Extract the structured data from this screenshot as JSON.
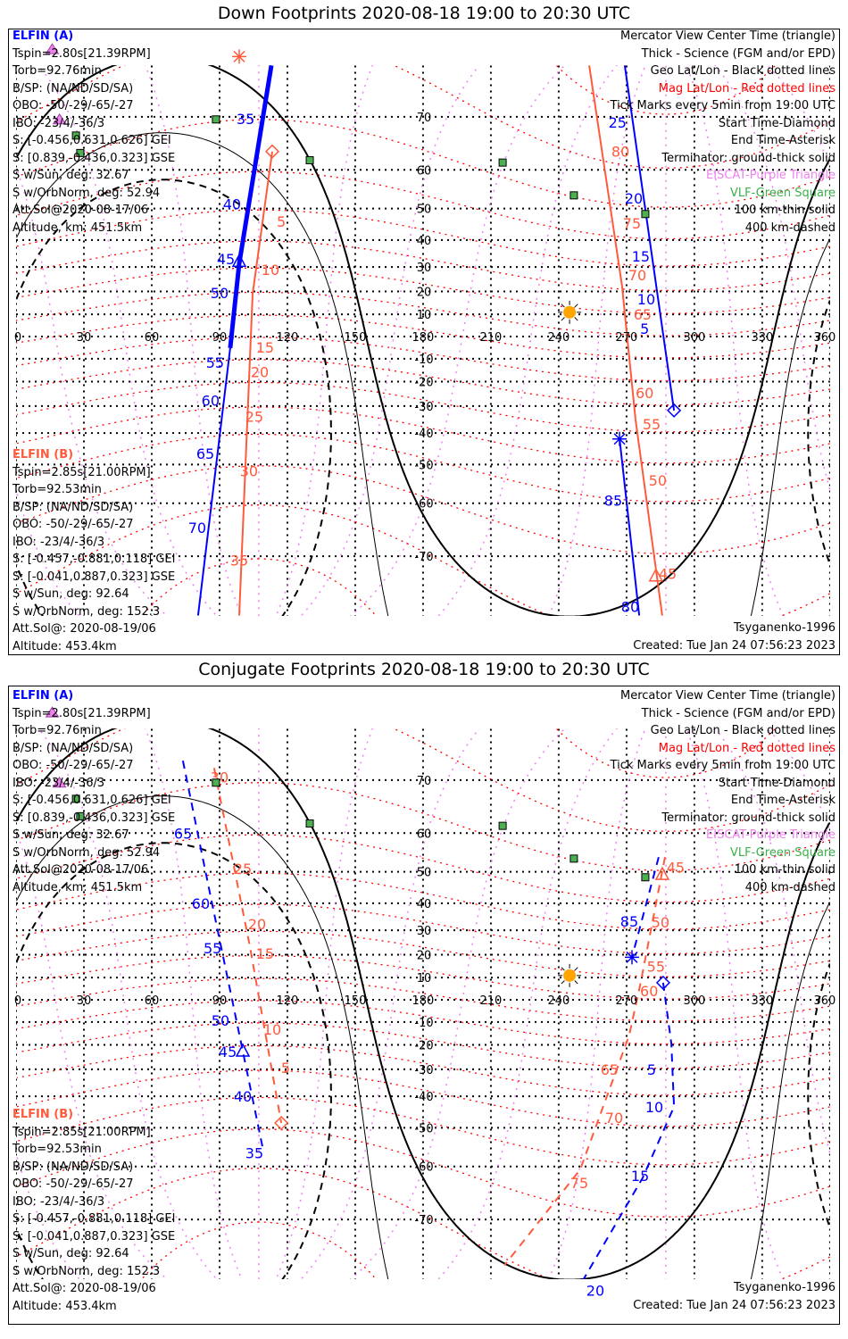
{
  "panels": [
    {
      "title": "Down Footprints 2020-08-18 19:00 to 20:30 UTC",
      "line_style": "solid",
      "tracks": [
        {
          "sat": "A",
          "color": "#0000ff",
          "segments": [
            {
              "science": true,
              "points": [
                [
                  112.9,
                  76.6
                ],
                [
                  98.7,
                  31.4
                ],
                [
                  94.7,
                  -5.2
                ]
              ]
            },
            {
              "science": false,
              "points": [
                [
                  94.7,
                  -5.2
                ],
                [
                  80.5,
                  -77.4
                ]
              ]
            }
          ],
          "labels": [
            {
              "t": "35",
              "lon": 101.5,
              "lat": 69.7
            },
            {
              "t": "40",
              "lon": 95.5,
              "lat": 51.3
            },
            {
              "t": "45",
              "lon": 92.8,
              "lat": 33.2
            },
            {
              "t": "50",
              "lon": 90,
              "lat": 19.4
            },
            {
              "t": "55",
              "lon": 88,
              "lat": -11.6
            },
            {
              "t": "60",
              "lon": 86,
              "lat": -27.8
            },
            {
              "t": "65",
              "lon": 83.7,
              "lat": -46.7
            },
            {
              "t": "70",
              "lon": 80.1,
              "lat": -65.1
            }
          ]
        },
        {
          "sat": "B",
          "color": "#ff5a3c",
          "segments": [
            {
              "science": false,
              "points": [
                [
                  113.3,
                  63.9
                ],
                [
                  104.6,
                  18.9
                ],
                [
                  98.7,
                  -77.4
                ]
              ]
            }
          ],
          "labels": [
            {
              "t": "5",
              "lon": 117.3,
              "lat": 46.2
            },
            {
              "t": "10",
              "lon": 112.5,
              "lat": 29
            },
            {
              "t": "15",
              "lon": 110.1,
              "lat": -4.8
            },
            {
              "t": "20",
              "lon": 107.8,
              "lat": -15.8
            },
            {
              "t": "25",
              "lon": 105.4,
              "lat": -34
            },
            {
              "t": "30",
              "lon": 103,
              "lat": -51.8
            },
            {
              "t": "35",
              "lon": 98.7,
              "lat": -70.6
            }
          ]
        },
        {
          "sat": "A",
          "color": "#0000ff",
          "segments": [
            {
              "science": false,
              "points": [
                [
                  269.2,
                  76.6
                ],
                [
                  291,
                  -31.7
                ]
              ]
            },
            {
              "science": false,
              "points": [
                [
                  266.9,
                  -42
                ],
                [
                  275.6,
                  -77.4
                ]
              ]
            }
          ],
          "labels": [
            {
              "t": "25",
              "lon": 266,
              "lat": 71.6
            },
            {
              "t": "20",
              "lon": 273.2,
              "lat": 53
            },
            {
              "t": "15",
              "lon": 276.3,
              "lat": 34.2
            },
            {
              "t": "10",
              "lon": 278.7,
              "lat": 16.7
            },
            {
              "t": "5",
              "lon": 278,
              "lat": 3.6
            },
            {
              "t": "85",
              "lon": 264.1,
              "lat": -59.3
            },
            {
              "t": "80",
              "lon": 271.6,
              "lat": -76.5
            }
          ]
        },
        {
          "sat": "B",
          "color": "#ff5a3c",
          "segments": [
            {
              "science": false,
              "points": [
                [
                  253.5,
                  76.6
                ],
                [
                  268,
                  22.5
                ],
                [
                  274,
                  -35.2
                ],
                [
                  285.8,
                  -77.4
                ]
              ]
            }
          ],
          "labels": [
            {
              "t": "80",
              "lon": 267.3,
              "lat": 63.9
            },
            {
              "t": "75",
              "lon": 272.4,
              "lat": 45.6
            },
            {
              "t": "70",
              "lon": 274.8,
              "lat": 26.9
            },
            {
              "t": "65",
              "lon": 277.1,
              "lat": 10
            },
            {
              "t": "60",
              "lon": 278,
              "lat": -24.6
            },
            {
              "t": "55",
              "lon": 281.1,
              "lat": -36.8
            },
            {
              "t": "50",
              "lon": 283.8,
              "lat": -54.4
            },
            {
              "t": "45",
              "lon": 288.2,
              "lat": -72.5
            }
          ]
        }
      ],
      "markers": [
        {
          "type": "triangle",
          "color": "#0000ff",
          "lon": 98.7,
          "lat": 32
        },
        {
          "type": "diamond",
          "color": "#ff5a3c",
          "lon": 113.3,
          "lat": 63.9
        },
        {
          "type": "asterisk",
          "color": "#ff5a3c",
          "lon": 98.7,
          "lat": 77.5
        },
        {
          "type": "diamond",
          "color": "#0000ff",
          "lon": 291,
          "lat": -31.7
        },
        {
          "type": "asterisk",
          "color": "#0000ff",
          "lon": 266.9,
          "lat": -42
        },
        {
          "type": "triangle",
          "color": "#ff5a3c",
          "lon": 283,
          "lat": -72.9
        }
      ]
    },
    {
      "title": "Conjugate Footprints 2020-08-18 19:00 to 20:30 UTC",
      "line_style": "dashed",
      "tracks": [
        {
          "sat": "A",
          "color": "#0000ff",
          "segments": [
            {
              "science": false,
              "points": [
                [
                  73.8,
                  72.8
                ],
                [
                  85.7,
                  43.5
                ],
                [
                  100.3,
                  -22.8
                ],
                [
                  109.4,
                  -56.4
                ]
              ]
            }
          ],
          "labels": [
            {
              "t": "65",
              "lon": 70.7,
              "lat": 58.7
            },
            {
              "t": "60",
              "lon": 81.7,
              "lat": 40
            },
            {
              "t": "55",
              "lon": 86.9,
              "lat": 22.8
            },
            {
              "t": "50",
              "lon": 90.4,
              "lat": -9.2
            },
            {
              "t": "45",
              "lon": 93.6,
              "lat": -22.8
            },
            {
              "t": "40",
              "lon": 100.3,
              "lat": -40
            },
            {
              "t": "35",
              "lon": 105.4,
              "lat": -56.8
            }
          ]
        },
        {
          "sat": "B",
          "color": "#ff5a3c",
          "segments": [
            {
              "science": false,
              "points": [
                [
                  87.6,
                  71.8
                ],
                [
                  103.4,
                  23.6
                ],
                [
                  117.3,
                  -48.6
                ]
              ]
            }
          ],
          "labels": [
            {
              "t": "30",
              "lon": 90,
              "lat": 70.5
            },
            {
              "t": "25",
              "lon": 100.3,
              "lat": 50.9
            },
            {
              "t": "20",
              "lon": 106.6,
              "lat": 32.5
            },
            {
              "t": "15",
              "lon": 110.1,
              "lat": 20.5
            },
            {
              "t": "10",
              "lon": 113.3,
              "lat": -13.2
            },
            {
              "t": "5",
              "lon": 119.2,
              "lat": -29.4
            }
          ]
        },
        {
          "sat": "A",
          "color": "#0000ff",
          "segments": [
            {
              "science": false,
              "points": [
                [
                  284.2,
                  54.1
                ],
                [
                  272.4,
                  18.9
                ]
              ]
            },
            {
              "science": false,
              "points": [
                [
                  286.2,
                  7.7
                ],
                [
                  289.8,
                  -19.4
                ],
                [
                  291,
                  -43.5
                ],
                [
                  277.1,
                  -62.5
                ],
                [
                  249.5,
                  -78
                ]
              ]
            }
          ],
          "labels": [
            {
              "t": "85",
              "lon": 271.2,
              "lat": 33.5
            },
            {
              "t": "5",
              "lon": 281.1,
              "lat": -30
            },
            {
              "t": "10",
              "lon": 282.3,
              "lat": -43.5
            },
            {
              "t": "15",
              "lon": 276,
              "lat": -62
            },
            {
              "t": "20",
              "lon": 256.2,
              "lat": -78.5
            }
          ]
        },
        {
          "sat": "B",
          "color": "#ff5a3c",
          "segments": [
            {
              "science": false,
              "points": [
                [
                  287,
                  54.1
                ],
                [
                  276.3,
                  8.1
                ],
                [
                  271.2,
                  -15.8
                ],
                [
                  249.5,
                  -60.7
                ],
                [
                  216,
                  -76
                ]
              ]
            }
          ],
          "labels": [
            {
              "t": "45",
              "lon": 291.7,
              "lat": 51.3
            },
            {
              "t": "50",
              "lon": 285,
              "lat": 33.2
            },
            {
              "t": "55",
              "lon": 283,
              "lat": 15
            },
            {
              "t": "60",
              "lon": 280,
              "lat": 4
            },
            {
              "t": "65",
              "lon": 262.5,
              "lat": -30
            },
            {
              "t": "70",
              "lon": 264.5,
              "lat": -47
            },
            {
              "t": "75",
              "lon": 249.1,
              "lat": -63.5
            }
          ]
        }
      ],
      "markers": [
        {
          "type": "triangle",
          "color": "#0000ff",
          "lon": 100.3,
          "lat": -22.8
        },
        {
          "type": "diamond",
          "color": "#ff5a3c",
          "lon": 117.3,
          "lat": -48.6
        },
        {
          "type": "asterisk",
          "color": "#0000ff",
          "lon": 272.4,
          "lat": 18.9
        },
        {
          "type": "diamond",
          "color": "#0000ff",
          "lon": 286.2,
          "lat": 7.7
        },
        {
          "type": "triangle",
          "color": "#ff5a3c",
          "lon": 285.8,
          "lat": 49.1
        }
      ]
    }
  ],
  "legend_a": {
    "heading": "ELFIN (A)",
    "color": "#0000ff",
    "lines": [
      "Tspin=2.80s[21.39RPM]",
      "Torb=92.76min",
      "B/SP: (NA/ND/SD/SA)",
      "OBO: -50/-29/-65/-27",
      "IBO: -23/4/-36/3",
      "S: [-0.456,0.631,0.626] GEI",
      "S: [0.839,-0.436,0.323] GSE",
      "S w/Sun, deg: 32.67",
      "S w/OrbNorm, deg: 52.94",
      "Att.Sol@2020-08-17/06",
      "Altitude, km: 451.5km"
    ]
  },
  "legend_b": {
    "heading": "ELFIN (B)",
    "color": "#ff5a3c",
    "lines": [
      "Tspin=2.85s[21.00RPM]",
      "Torb=92.53min",
      "B/SP: (NA/ND/SD/SA)",
      "OBO: -50/-29/-65/-27",
      "IBO: -23/4/-36/3",
      "S: [-0.457,-0.881,0.118] GEI",
      "S: [-0.041,0.887,0.323] GSE",
      "S w/Sun, deg: 92.64",
      "S w/OrbNorm, deg: 152.3",
      "Att.Sol@: 2020-08-19/06",
      "Altitude: 453.4km"
    ]
  },
  "legend_right": [
    {
      "t": "Mercator View Center Time (triangle)",
      "c": "#000000"
    },
    {
      "t": "Thick - Science (FGM and/or EPD)",
      "c": "#000000"
    },
    {
      "t": "Geo Lat/Lon - Black dotted lines",
      "c": "#000000"
    },
    {
      "t": "Mag Lat/Lon - Red dotted lines",
      "c": "#ff0000"
    },
    {
      "t": "Tick Marks every 5min from 19:00 UTC",
      "c": "#000000"
    },
    {
      "t": "Start Time-Diamond",
      "c": "#000000"
    },
    {
      "t": "End Time-Asterisk",
      "c": "#000000"
    },
    {
      "t": "Terminator: ground-thick solid",
      "c": "#000000"
    },
    {
      "t": "EISCAT-Purple Triangle",
      "c": "#ee82ee"
    },
    {
      "t": "VLF-Green Square",
      "c": "#3cb04c"
    },
    {
      "t": "100 km-thin solid",
      "c": "#000000"
    },
    {
      "t": "400 km-dashed",
      "c": "#000000"
    }
  ],
  "footer": {
    "model": "Tsyganenko-1996",
    "created": "Created: Tue Jan 24 07:56:23 2023"
  },
  "chart_data": {
    "type": "map",
    "projection": "mercator",
    "x_ticks": [
      "0",
      "30",
      "60",
      "90",
      "120",
      "150",
      "180",
      "210",
      "240",
      "270",
      "300",
      "330",
      "360"
    ],
    "y_ticks": [
      "70",
      "60",
      "50",
      "40",
      "30",
      "20",
      "10",
      "-10",
      "-20",
      "-30",
      "-40",
      "-50",
      "-60",
      "-70"
    ],
    "xlim": [
      0,
      360
    ],
    "sun": {
      "lon": 244.8,
      "lat": 10.9
    },
    "terminator_altitudes_km": [
      0,
      100,
      400
    ],
    "vlf_sites": [
      [
        88.4,
        69.6
      ],
      [
        26.5,
        66.9
      ],
      [
        28.4,
        63.6
      ],
      [
        129.9,
        62.1
      ],
      [
        215.2,
        61.6
      ],
      [
        246.7,
        53.7
      ],
      [
        278.3,
        48.4
      ]
    ],
    "eiscat_sites": [
      [
        16,
        78.2
      ],
      [
        19.2,
        69.6
      ]
    ],
    "colors": {
      "geo_grid": "#000000",
      "mag_grid": "#ff0000",
      "mag_meridian": "#ee82ee",
      "vlf": "#4caf50",
      "eiscat": "#ee82ee",
      "sun": "#ffa500"
    }
  }
}
